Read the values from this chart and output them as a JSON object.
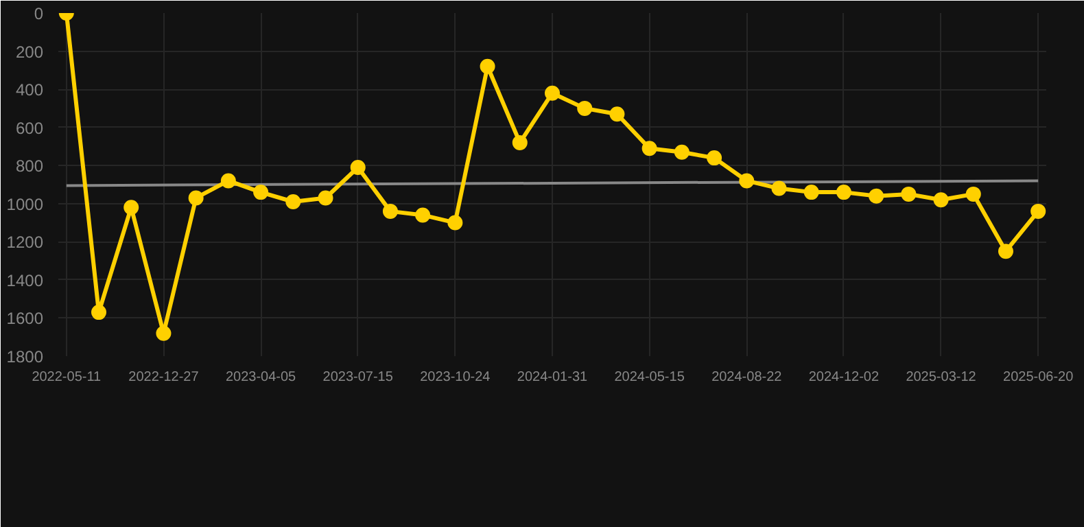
{
  "chart_data": {
    "type": "line",
    "categories": [
      "2022-05-11",
      null,
      null,
      "2022-12-27",
      null,
      null,
      "2023-04-05",
      null,
      null,
      "2023-07-15",
      null,
      null,
      "2023-10-24",
      null,
      null,
      "2024-01-31",
      null,
      null,
      "2024-05-15",
      null,
      null,
      "2024-08-22",
      null,
      null,
      "2024-12-02",
      null,
      null,
      "2025-03-12",
      null,
      null,
      "2025-06-20"
    ],
    "series": [
      {
        "color": "#ffd000",
        "marker": "circle",
        "values": [
          0,
          1570,
          1020,
          1680,
          970,
          880,
          940,
          990,
          970,
          810,
          1040,
          1060,
          1100,
          280,
          680,
          420,
          500,
          530,
          710,
          730,
          760,
          880,
          920,
          940,
          940,
          960,
          950,
          980,
          950,
          1250,
          1040
        ]
      },
      {
        "type": "line",
        "color": "#888888",
        "marker": "none",
        "values": [
          905,
          null,
          null,
          null,
          null,
          null,
          null,
          null,
          null,
          null,
          null,
          null,
          null,
          null,
          null,
          null,
          null,
          null,
          null,
          null,
          null,
          null,
          null,
          null,
          null,
          null,
          null,
          null,
          null,
          null,
          880
        ]
      }
    ],
    "ylim": [
      1800,
      0
    ],
    "yticks": [
      0,
      200,
      400,
      600,
      800,
      1000,
      1200,
      1400,
      1600,
      1800
    ],
    "grid": true
  }
}
